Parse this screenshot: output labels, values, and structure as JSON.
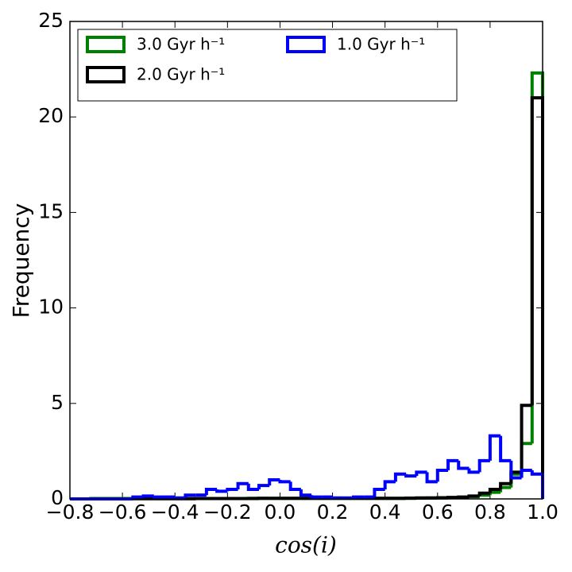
{
  "chart_data": {
    "type": "histogram",
    "xlabel": "cos(i)",
    "ylabel": "Frequency",
    "bins": [
      -0.8,
      -0.76,
      -0.72,
      -0.68,
      -0.64,
      -0.6,
      -0.56,
      -0.52,
      -0.48,
      -0.44,
      -0.4,
      -0.36,
      -0.32,
      -0.28,
      -0.24,
      -0.2,
      -0.16,
      -0.12,
      -0.08,
      -0.04,
      0,
      0.04,
      0.08,
      0.12,
      0.16,
      0.2,
      0.24,
      0.28,
      0.32,
      0.36,
      0.4,
      0.44,
      0.48,
      0.52,
      0.56,
      0.6,
      0.64,
      0.68,
      0.72,
      0.76,
      0.8,
      0.84,
      0.88,
      0.92,
      0.96,
      1.0
    ],
    "series": [
      {
        "name": "3.0 Gyr h⁻¹",
        "color": "#008000",
        "values": [
          0,
          0,
          0.02,
          0.02,
          0.02,
          0.02,
          0.02,
          0.02,
          0.02,
          0.02,
          0.02,
          0.02,
          0.02,
          0.02,
          0.02,
          0.02,
          0.02,
          0.03,
          0.03,
          0.03,
          0.03,
          0.03,
          0.03,
          0.03,
          0.03,
          0.03,
          0.03,
          0.03,
          0.03,
          0.03,
          0.03,
          0.03,
          0.03,
          0.04,
          0.05,
          0.05,
          0.06,
          0.08,
          0.12,
          0.2,
          0.35,
          0.6,
          1.3,
          2.9,
          22.3
        ]
      },
      {
        "name": "2.0 Gyr h⁻¹",
        "color": "#000000",
        "values": [
          0,
          0,
          0,
          0,
          0,
          0,
          0.01,
          0.01,
          0.01,
          0.01,
          0.01,
          0.01,
          0.02,
          0.02,
          0.02,
          0.02,
          0.02,
          0.02,
          0.03,
          0.03,
          0.03,
          0.03,
          0.03,
          0.03,
          0.03,
          0.03,
          0.03,
          0.03,
          0.03,
          0.03,
          0.03,
          0.03,
          0.04,
          0.05,
          0.05,
          0.06,
          0.08,
          0.1,
          0.15,
          0.3,
          0.5,
          0.8,
          1.4,
          4.9,
          21.0
        ]
      },
      {
        "name": "1.0 Gyr h⁻¹",
        "color": "#0000ff",
        "values": [
          0,
          0,
          0,
          0,
          0,
          0,
          0.1,
          0.15,
          0.1,
          0.1,
          0.05,
          0.2,
          0.2,
          0.5,
          0.4,
          0.5,
          0.8,
          0.5,
          0.7,
          1.0,
          0.9,
          0.5,
          0.2,
          0.1,
          0.1,
          0.05,
          0.05,
          0.1,
          0.1,
          0.5,
          0.9,
          1.3,
          1.2,
          1.4,
          0.9,
          1.5,
          2.0,
          1.6,
          1.4,
          2.0,
          3.3,
          2.0,
          1.1,
          1.5,
          1.3
        ]
      }
    ],
    "xlim": [
      -0.8,
      1.0
    ],
    "xticks": [
      {
        "value": -0.8,
        "label": "−0.8"
      },
      {
        "value": -0.6,
        "label": "−0.6"
      },
      {
        "value": -0.4,
        "label": "−0.4"
      },
      {
        "value": -0.2,
        "label": "−0.2"
      },
      {
        "value": 0.0,
        "label": "0.0"
      },
      {
        "value": 0.2,
        "label": "0.2"
      },
      {
        "value": 0.4,
        "label": "0.4"
      },
      {
        "value": 0.6,
        "label": "0.6"
      },
      {
        "value": 0.8,
        "label": "0.8"
      },
      {
        "value": 1.0,
        "label": "1.0"
      }
    ],
    "ylim": [
      0,
      25
    ],
    "yticks": [
      0,
      5,
      10,
      15,
      20,
      25
    ],
    "legend": "upper left"
  }
}
